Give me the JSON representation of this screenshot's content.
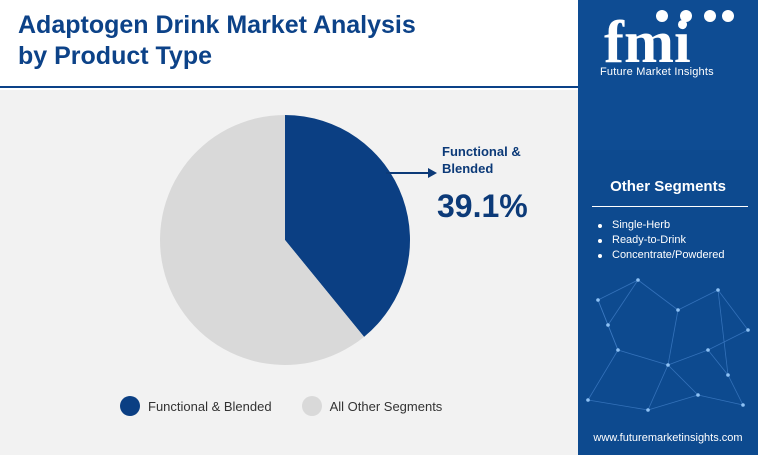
{
  "title": "Adaptogen Drink Market Analysis by Product Type",
  "chart_data": {
    "type": "pie",
    "title": "Adaptogen Drink Market Analysis by Product Type",
    "slices": [
      {
        "label": "Functional & Blended",
        "value": 39.1,
        "color": "#0b3f83"
      },
      {
        "label": "All Other Segments",
        "value": 60.9,
        "color": "#d9d9d9"
      }
    ],
    "callout": {
      "label": "Functional &\nBlended",
      "value_text": "39.1%"
    },
    "legend": [
      "Functional & Blended",
      "All Other Segments"
    ],
    "legend_position": "bottom"
  },
  "sidebar": {
    "brand": "fmi",
    "tagline": "Future Market Insights",
    "segments_title": "Other Segments",
    "segments": [
      "Single-Herb",
      "Ready-to-Drink",
      "Concentrate/Powdered"
    ],
    "url": "www.futuremarketinsights.com"
  },
  "colors": {
    "primary": "#0c4288",
    "sidebar": "#0d4a8f",
    "canvas": "#f2f2f2"
  }
}
